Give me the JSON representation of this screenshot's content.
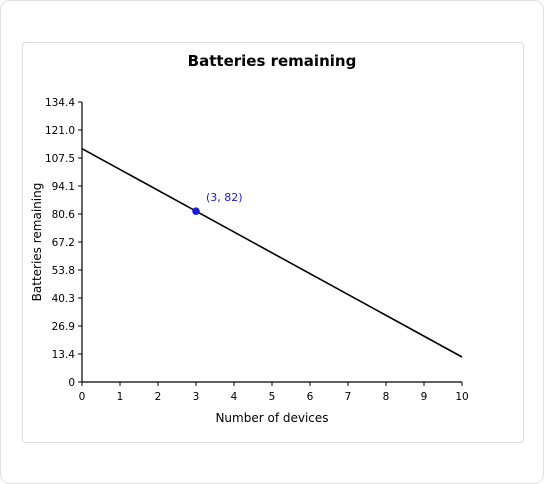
{
  "chart_data": {
    "type": "line",
    "title": "Batteries remaining",
    "xlabel": "Number of devices",
    "ylabel": "Batteries remaining",
    "xlim": [
      0,
      10
    ],
    "ylim": [
      0,
      134.4
    ],
    "x_ticks": [
      "0",
      "1",
      "2",
      "3",
      "4",
      "5",
      "6",
      "7",
      "8",
      "9",
      "10"
    ],
    "y_ticks": [
      "0",
      "13.4",
      "26.9",
      "40.3",
      "53.8",
      "67.2",
      "80.6",
      "94.1",
      "107.5",
      "121.0",
      "134.4"
    ],
    "grid": false,
    "series": [
      {
        "x": [
          0,
          10
        ],
        "y": [
          112,
          12
        ]
      }
    ],
    "highlight_point": {
      "x": 3,
      "y": 82,
      "label": "(3, 82)",
      "color": "#1a1ad6"
    },
    "line_color": "#000000"
  }
}
